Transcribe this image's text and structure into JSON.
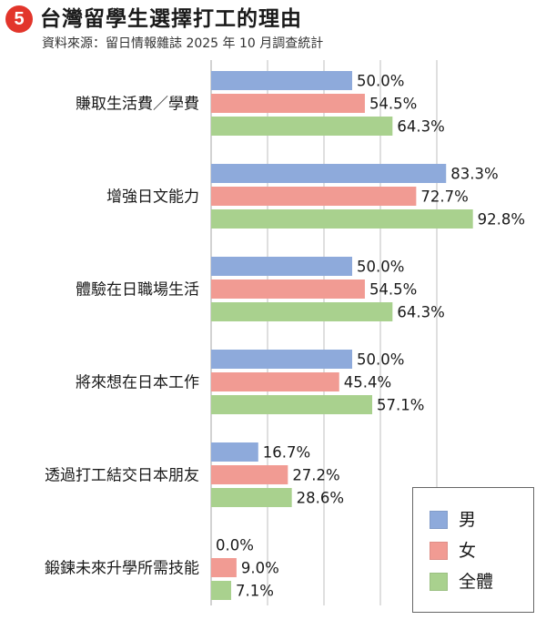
{
  "header": {
    "badge": "5",
    "title": "台灣留學生選擇打工的理由",
    "subtitle": "資料來源：留日情報雜誌 2025 年 10 月調查統計"
  },
  "colors": {
    "male": "#8eaadb",
    "female": "#f19b93",
    "total": "#a9d18e",
    "badge": "#e2352b",
    "grid": "#bfbfbf"
  },
  "legend": {
    "items": [
      {
        "label": "男",
        "color": "#8eaadb"
      },
      {
        "label": "女",
        "color": "#f19b93"
      },
      {
        "label": "全體",
        "color": "#a9d18e"
      }
    ]
  },
  "chart_data": {
    "type": "bar",
    "orientation": "horizontal",
    "title": "台灣留學生選擇打工的理由",
    "subtitle": "資料來源：留日情報雜誌 2025 年 10 月調查統計",
    "categories": [
      "賺取生活費／學費",
      "增強日文能力",
      "體驗在日職場生活",
      "將來想在日本工作",
      "透過打工結交日本朋友",
      "鍛鍊未來升學所需技能"
    ],
    "series": [
      {
        "name": "男",
        "values": [
          50.0,
          83.3,
          50.0,
          50.0,
          16.7,
          0.0
        ],
        "labels": [
          "50.0%",
          "83.3%",
          "50.0%",
          "50.0%",
          "16.7%",
          "0.0%"
        ]
      },
      {
        "name": "女",
        "values": [
          54.5,
          72.7,
          54.5,
          45.4,
          27.2,
          9.0
        ],
        "labels": [
          "54.5%",
          "72.7%",
          "54.5%",
          "45.4%",
          "27.2%",
          "9.0%"
        ]
      },
      {
        "name": "全體",
        "values": [
          64.3,
          92.8,
          64.3,
          57.1,
          28.6,
          7.1
        ],
        "labels": [
          "64.3%",
          "92.8%",
          "64.3%",
          "57.1%",
          "28.6%",
          "7.1%"
        ]
      }
    ],
    "xlim": [
      0,
      100
    ],
    "grid": true,
    "legend_position": "bottom-right"
  }
}
